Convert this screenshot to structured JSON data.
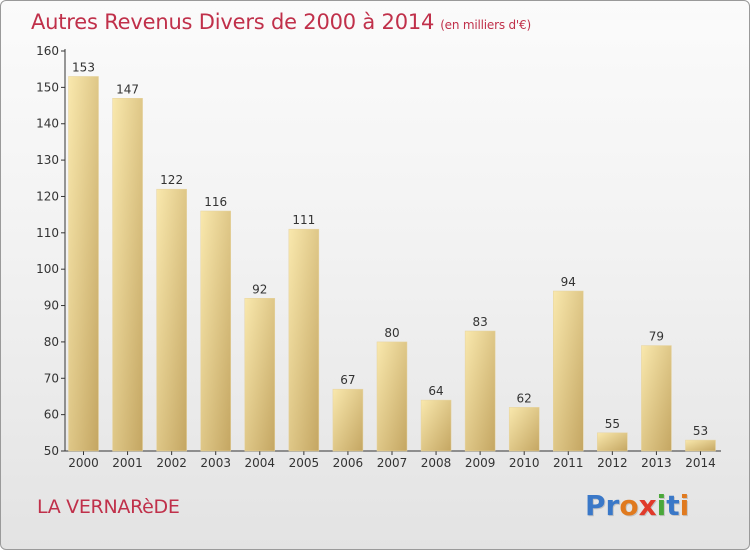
{
  "title": "Autres Revenus Divers de 2000 à 2014",
  "unit": "(en milliers d'€)",
  "place": "LA VERNARèDE",
  "logo": {
    "text": "Proxiti",
    "colors": [
      "#3a78c8",
      "#3a78c8",
      "#e07a1f",
      "#e03a2a",
      "#4aa83a",
      "#3a78c8",
      "#e07a1f"
    ]
  },
  "colors": {
    "title": "#c0304a",
    "bar_light": "#f6e2a4",
    "bar_dark": "#c8ab66"
  },
  "chart_data": {
    "type": "bar",
    "categories": [
      "2000",
      "2001",
      "2002",
      "2003",
      "2004",
      "2005",
      "2006",
      "2007",
      "2008",
      "2009",
      "2010",
      "2011",
      "2012",
      "2013",
      "2014"
    ],
    "values": [
      153,
      147,
      122,
      116,
      92,
      111,
      67,
      80,
      64,
      83,
      62,
      94,
      55,
      79,
      53
    ],
    "ylim": [
      50,
      160
    ],
    "yticks": [
      50,
      60,
      70,
      80,
      90,
      100,
      110,
      120,
      130,
      140,
      150,
      160
    ],
    "grid": false,
    "data_labels": true
  }
}
